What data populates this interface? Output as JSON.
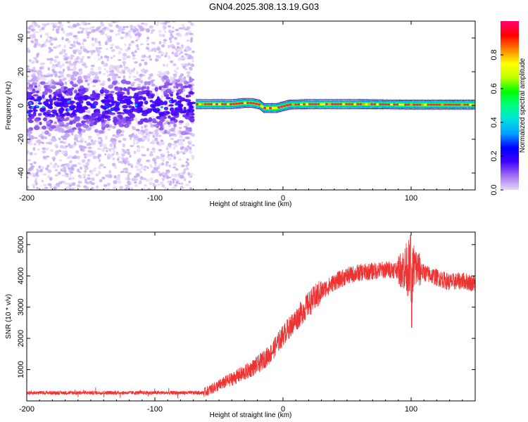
{
  "title": "GN04.2025.308.13.19.G03",
  "chart_data": [
    {
      "type": "heatmap",
      "name": "spectrogram",
      "xlabel": "Height of straight line (km)",
      "ylabel": "Frequency (Hz)",
      "xlim": [
        -200,
        150
      ],
      "ylim": [
        -50,
        50
      ],
      "x_ticks": [
        -200,
        -100,
        0,
        100
      ],
      "y_ticks": [
        -40,
        -20,
        0,
        20,
        40
      ],
      "noise_region": {
        "x_range": [
          -200,
          -70
        ],
        "note": "scattered low-amplitude purple energy across all frequencies, concentrated near 0 Hz"
      },
      "signal_track": [
        {
          "x": -68,
          "y": 0.8
        },
        {
          "x": -40,
          "y": 0.8
        },
        {
          "x": -30,
          "y": 1.5
        },
        {
          "x": -24,
          "y": 1.5
        },
        {
          "x": -18,
          "y": 0.5
        },
        {
          "x": -15,
          "y": -1.5
        },
        {
          "x": -5,
          "y": -1.5
        },
        {
          "x": 0,
          "y": -0.5
        },
        {
          "x": 5,
          "y": 0.5
        },
        {
          "x": 20,
          "y": 0.8
        },
        {
          "x": 60,
          "y": 0.8
        },
        {
          "x": 100,
          "y": 0.5
        },
        {
          "x": 150,
          "y": 0.5
        }
      ],
      "colorbar": {
        "label": "Normalized spectral amplitude",
        "range": [
          0,
          1
        ],
        "ticks": [
          "0.0",
          "0.2",
          "0.4",
          "0.6",
          "0.8"
        ],
        "tick_values": [
          0.0,
          0.2,
          0.4,
          0.6,
          0.8
        ],
        "colors": [
          "#e8d8f8",
          "#a070f0",
          "#4000ff",
          "#0000ff",
          "#00a0ff",
          "#00e0e0",
          "#00ff80",
          "#00ff00",
          "#c0ff00",
          "#ffff00",
          "#ff8000",
          "#ff0000",
          "#ff0070"
        ]
      }
    },
    {
      "type": "line",
      "name": "snr",
      "xlabel": "Height of straight line (km)",
      "ylabel": "SNR (10 * v/v)",
      "xlim": [
        -200,
        150
      ],
      "ylim": [
        0,
        5400
      ],
      "x_ticks": [
        -200,
        -100,
        0,
        100
      ],
      "y_ticks": [
        1000,
        2000,
        3000,
        4000,
        5000
      ],
      "color": "#ee3333",
      "series": [
        {
          "name": "SNR",
          "x": [
            -200,
            -150,
            -100,
            -70,
            -62,
            -50,
            -40,
            -30,
            -20,
            -10,
            0,
            10,
            20,
            30,
            40,
            50,
            60,
            70,
            80,
            90,
            98,
            100,
            102,
            110,
            120,
            130,
            140,
            150
          ],
          "y": [
            260,
            260,
            260,
            260,
            260,
            500,
            700,
            900,
            1150,
            1500,
            2100,
            2600,
            3100,
            3500,
            3800,
            4000,
            4100,
            4150,
            4200,
            4200,
            4250,
            3700,
            4300,
            4100,
            3950,
            3800,
            3850,
            3750
          ]
        }
      ]
    }
  ]
}
